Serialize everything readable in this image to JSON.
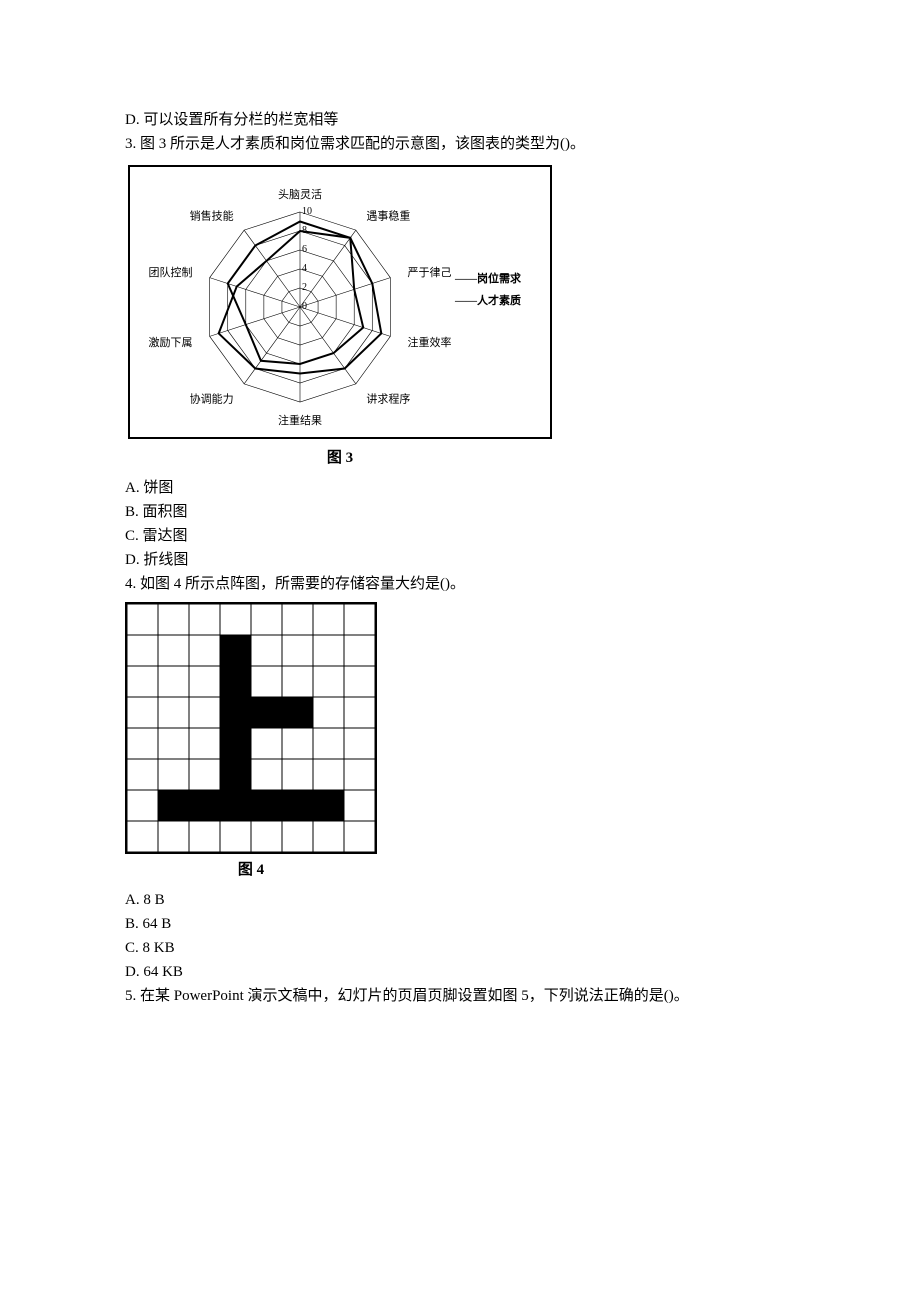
{
  "q2": {
    "options": {
      "D": "D. 可以设置所有分栏的栏宽相等"
    }
  },
  "q3": {
    "stem": "3. 图 3 所示是人才素质和岗位需求匹配的示意图，该图表的类型为()。",
    "figure_caption": "图 3",
    "options": {
      "A": "A. 饼图",
      "B": "B. 面积图",
      "C": "C. 雷达图",
      "D": "D. 折线图"
    },
    "radar": {
      "type": "radar",
      "axes": [
        "头脑灵活",
        "遇事稳重",
        "严于律己",
        "注重效率",
        "讲求程序",
        "注重结果",
        "协调能力",
        "激励下属",
        "团队控制",
        "销售技能"
      ],
      "rings": [
        0,
        2,
        4,
        6,
        8,
        10
      ],
      "series": [
        {
          "name": "岗位需求",
          "values": [
            8,
            9,
            8,
            9,
            8,
            7,
            8,
            9,
            7,
            6
          ],
          "color": "#000000",
          "width": 2
        },
        {
          "name": "人才素质",
          "values": [
            9,
            9,
            6,
            7,
            6,
            6,
            7,
            6,
            8,
            8
          ],
          "color": "#000000",
          "width": 2
        }
      ],
      "legend": [
        "岗位需求",
        "人才素质"
      ],
      "legend_prefix": "——",
      "border_color": "#000000",
      "grid_color": "#000000",
      "background_color": "#ffffff",
      "label_fontsize": 11
    }
  },
  "q4": {
    "stem": "4. 如图 4 所示点阵图，所需要的存储容量大约是()。",
    "figure_caption": "图 4",
    "options": {
      "A": "A. 8 B",
      "B": "B. 64 B",
      "C": "C. 8 KB",
      "D": "D. 64 KB"
    },
    "bitmap": {
      "type": "bitmap-grid",
      "rows": 8,
      "cols": 8,
      "cell_size": 31,
      "fill_color": "#000000",
      "empty_color": "#ffffff",
      "grid_color": "#000000",
      "data": [
        [
          0,
          0,
          0,
          0,
          0,
          0,
          0,
          0
        ],
        [
          0,
          0,
          0,
          1,
          0,
          0,
          0,
          0
        ],
        [
          0,
          0,
          0,
          1,
          0,
          0,
          0,
          0
        ],
        [
          0,
          0,
          0,
          1,
          1,
          1,
          0,
          0
        ],
        [
          0,
          0,
          0,
          1,
          0,
          0,
          0,
          0
        ],
        [
          0,
          0,
          0,
          1,
          0,
          0,
          0,
          0
        ],
        [
          0,
          1,
          1,
          1,
          1,
          1,
          1,
          0
        ],
        [
          0,
          0,
          0,
          0,
          0,
          0,
          0,
          0
        ]
      ]
    }
  },
  "q5": {
    "stem": "5. 在某 PowerPoint 演示文稿中，幻灯片的页眉页脚设置如图 5，下列说法正确的是()。"
  }
}
